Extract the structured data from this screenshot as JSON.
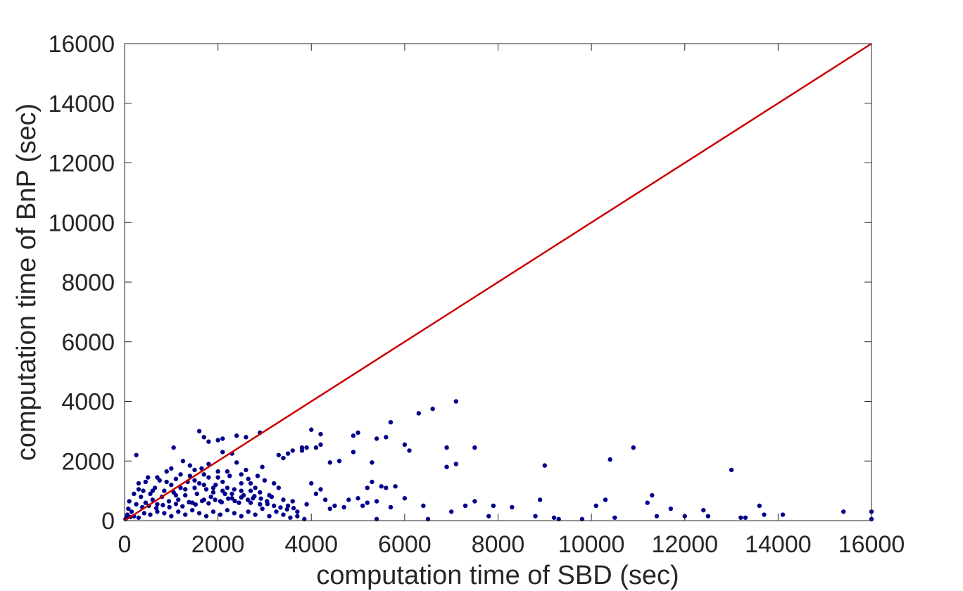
{
  "chart_data": {
    "type": "scatter",
    "xlabel": "computation time of SBD (sec)",
    "ylabel": "computation time of BnP (sec)",
    "xlim": [
      0,
      16000
    ],
    "ylim": [
      0,
      16000
    ],
    "xticks": [
      "0",
      "2000",
      "4000",
      "6000",
      "8000",
      "10000",
      "12000",
      "14000",
      "16000"
    ],
    "yticks": [
      "0",
      "2000",
      "4000",
      "6000",
      "8000",
      "10000",
      "12000",
      "14000",
      "16000"
    ],
    "grid": false,
    "reference_line": {
      "x": [
        0,
        16000
      ],
      "y": [
        0,
        16000
      ],
      "color": "#cc0000"
    },
    "series": [
      {
        "color": "#00008b",
        "points": [
          [
            7100,
            4000
          ],
          [
            6600,
            3750
          ],
          [
            6300,
            3600
          ],
          [
            5700,
            3300
          ],
          [
            1600,
            3000
          ],
          [
            2900,
            2950
          ],
          [
            4000,
            3050
          ],
          [
            4200,
            2900
          ],
          [
            5000,
            2950
          ],
          [
            4900,
            2850
          ],
          [
            5600,
            2800
          ],
          [
            5400,
            2750
          ],
          [
            6000,
            2550
          ],
          [
            6100,
            2350
          ],
          [
            6900,
            2450
          ],
          [
            7500,
            2450
          ],
          [
            10900,
            2450
          ],
          [
            10400,
            2050
          ],
          [
            9000,
            1850
          ],
          [
            13000,
            1700
          ],
          [
            7100,
            1900
          ],
          [
            6900,
            1800
          ],
          [
            4200,
            2550
          ],
          [
            4900,
            2300
          ],
          [
            5300,
            1950
          ],
          [
            5300,
            1300
          ],
          [
            4600,
            2000
          ],
          [
            4400,
            1950
          ],
          [
            4100,
            2450
          ],
          [
            3900,
            2450
          ],
          [
            3800,
            2450
          ],
          [
            3800,
            2350
          ],
          [
            3600,
            2350
          ],
          [
            3500,
            2250
          ],
          [
            3300,
            2200
          ],
          [
            3400,
            2100
          ],
          [
            2400,
            2850
          ],
          [
            2600,
            2800
          ],
          [
            2100,
            2750
          ],
          [
            2000,
            2700
          ],
          [
            1800,
            2650
          ],
          [
            1700,
            2800
          ],
          [
            1050,
            2450
          ],
          [
            250,
            2200
          ],
          [
            5800,
            1150
          ],
          [
            5600,
            1100
          ],
          [
            5500,
            1150
          ],
          [
            5200,
            1100
          ],
          [
            6400,
            500
          ],
          [
            7000,
            300
          ],
          [
            7300,
            500
          ],
          [
            7500,
            650
          ],
          [
            7900,
            500
          ],
          [
            8300,
            450
          ],
          [
            8900,
            700
          ],
          [
            9300,
            50
          ],
          [
            9800,
            50
          ],
          [
            10100,
            500
          ],
          [
            10300,
            700
          ],
          [
            10500,
            100
          ],
          [
            11300,
            850
          ],
          [
            11200,
            600
          ],
          [
            11700,
            400
          ],
          [
            11400,
            150
          ],
          [
            12000,
            150
          ],
          [
            12400,
            350
          ],
          [
            12500,
            150
          ],
          [
            13200,
            100
          ],
          [
            13300,
            100
          ],
          [
            13600,
            500
          ],
          [
            13700,
            200
          ],
          [
            14100,
            200
          ],
          [
            15400,
            300
          ],
          [
            16000,
            300
          ],
          [
            16000,
            50
          ],
          [
            9200,
            100
          ],
          [
            8800,
            150
          ],
          [
            7800,
            150
          ],
          [
            6500,
            50
          ],
          [
            5400,
            50
          ],
          [
            4800,
            700
          ],
          [
            4500,
            500
          ],
          [
            4400,
            400
          ],
          [
            4700,
            450
          ],
          [
            5000,
            750
          ],
          [
            5100,
            500
          ],
          [
            5200,
            600
          ],
          [
            5400,
            650
          ],
          [
            5700,
            450
          ],
          [
            6000,
            750
          ],
          [
            4300,
            700
          ],
          [
            4200,
            1050
          ],
          [
            4100,
            900
          ],
          [
            4000,
            1250
          ],
          [
            3900,
            550
          ],
          [
            3700,
            300
          ],
          [
            3600,
            650
          ],
          [
            3500,
            500
          ],
          [
            3400,
            700
          ],
          [
            3300,
            1100
          ],
          [
            3200,
            1250
          ],
          [
            3150,
            800
          ],
          [
            3050,
            650
          ],
          [
            3000,
            1350
          ],
          [
            2950,
            1800
          ],
          [
            2850,
            1500
          ],
          [
            2800,
            1100
          ],
          [
            2750,
            750
          ],
          [
            2700,
            1000
          ],
          [
            2650,
            1400
          ],
          [
            2600,
            1700
          ],
          [
            2550,
            850
          ],
          [
            2500,
            1250
          ],
          [
            2450,
            600
          ],
          [
            2400,
            1950
          ],
          [
            2350,
            1050
          ],
          [
            2300,
            750
          ],
          [
            2250,
            1500
          ],
          [
            2200,
            1100
          ],
          [
            2150,
            900
          ],
          [
            2100,
            1300
          ],
          [
            2050,
            650
          ],
          [
            2000,
            1650
          ],
          [
            1950,
            1200
          ],
          [
            1900,
            950
          ],
          [
            1850,
            800
          ],
          [
            1800,
            1450
          ],
          [
            1750,
            1050
          ],
          [
            1700,
            700
          ],
          [
            1650,
            1750
          ],
          [
            1600,
            1250
          ],
          [
            1550,
            900
          ],
          [
            1500,
            1100
          ],
          [
            1450,
            600
          ],
          [
            1400,
            1500
          ],
          [
            1350,
            1300
          ],
          [
            1300,
            850
          ],
          [
            1250,
            2000
          ],
          [
            1200,
            1100
          ],
          [
            1150,
            700
          ],
          [
            1100,
            1400
          ],
          [
            1050,
            950
          ],
          [
            1000,
            1200
          ],
          [
            950,
            650
          ],
          [
            900,
            1650
          ],
          [
            850,
            1000
          ],
          [
            800,
            800
          ],
          [
            750,
            1350
          ],
          [
            700,
            550
          ],
          [
            650,
            1100
          ],
          [
            600,
            700
          ],
          [
            550,
            900
          ],
          [
            500,
            1450
          ],
          [
            450,
            600
          ],
          [
            400,
            1000
          ],
          [
            350,
            800
          ],
          [
            300,
            1250
          ],
          [
            250,
            550
          ],
          [
            200,
            900
          ],
          [
            150,
            300
          ],
          [
            100,
            650
          ],
          [
            80,
            400
          ],
          [
            60,
            200
          ],
          [
            40,
            100
          ],
          [
            20,
            50
          ],
          [
            120,
            120
          ],
          [
            200,
            150
          ],
          [
            300,
            100
          ],
          [
            420,
            250
          ],
          [
            550,
            200
          ],
          [
            700,
            300
          ],
          [
            850,
            250
          ],
          [
            1000,
            150
          ],
          [
            1150,
            300
          ],
          [
            1300,
            200
          ],
          [
            1450,
            350
          ],
          [
            1600,
            250
          ],
          [
            1750,
            150
          ],
          [
            1900,
            300
          ],
          [
            2050,
            200
          ],
          [
            2200,
            350
          ],
          [
            2350,
            250
          ],
          [
            2500,
            150
          ],
          [
            2650,
            300
          ],
          [
            2800,
            200
          ],
          [
            2950,
            400
          ],
          [
            3100,
            150
          ],
          [
            3250,
            300
          ],
          [
            3400,
            200
          ],
          [
            3550,
            100
          ],
          [
            3700,
            150
          ],
          [
            3850,
            50
          ],
          [
            380,
            450
          ],
          [
            520,
            500
          ],
          [
            680,
            420
          ],
          [
            820,
            520
          ],
          [
            960,
            450
          ],
          [
            1100,
            560
          ],
          [
            1240,
            480
          ],
          [
            1380,
            620
          ],
          [
            1520,
            540
          ],
          [
            1660,
            660
          ],
          [
            1800,
            580
          ],
          [
            1940,
            700
          ],
          [
            2080,
            620
          ],
          [
            2220,
            740
          ],
          [
            2360,
            660
          ],
          [
            2500,
            780
          ],
          [
            2640,
            700
          ],
          [
            2780,
            820
          ],
          [
            2920,
            740
          ],
          [
            3060,
            560
          ],
          [
            3200,
            500
          ],
          [
            3340,
            440
          ],
          [
            3480,
            380
          ],
          [
            3620,
            420
          ],
          [
            600,
            1000
          ],
          [
            900,
            1300
          ],
          [
            1200,
            1550
          ],
          [
            1500,
            1700
          ],
          [
            1800,
            1900
          ],
          [
            2100,
            2300
          ],
          [
            2300,
            2250
          ],
          [
            1400,
            1850
          ],
          [
            1000,
            1750
          ],
          [
            700,
            1450
          ],
          [
            450,
            1300
          ],
          [
            300,
            1050
          ],
          [
            1700,
            1550
          ],
          [
            2000,
            1450
          ],
          [
            2200,
            1650
          ],
          [
            2500,
            1550
          ],
          [
            2700,
            1250
          ],
          [
            2900,
            950
          ],
          [
            3100,
            850
          ],
          [
            1100,
            850
          ],
          [
            1300,
            1050
          ],
          [
            1500,
            1350
          ],
          [
            1700,
            1200
          ],
          [
            1900,
            1100
          ],
          [
            2100,
            1000
          ],
          [
            2300,
            900
          ],
          [
            2500,
            1000
          ],
          [
            2700,
            600
          ],
          [
            2900,
            550
          ]
        ]
      }
    ]
  }
}
